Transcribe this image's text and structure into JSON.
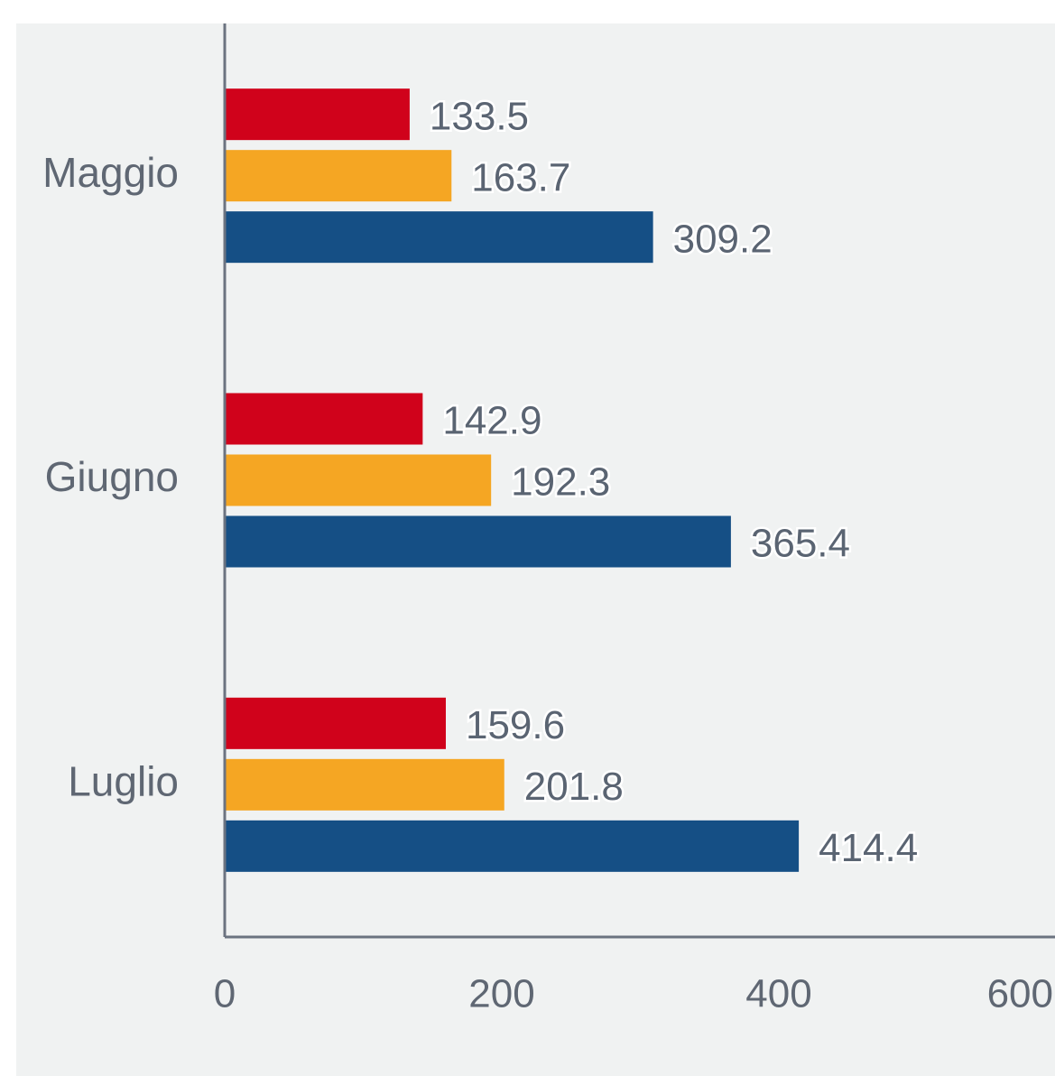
{
  "chart_data": {
    "type": "bar",
    "orientation": "horizontal",
    "categories": [
      "Maggio",
      "Giugno",
      "Luglio"
    ],
    "series": [
      {
        "color": "#d0021b",
        "values": [
          133.5,
          142.9,
          159.6
        ]
      },
      {
        "color": "#f5a623",
        "values": [
          163.7,
          192.3,
          201.8
        ]
      },
      {
        "color": "#154f85",
        "values": [
          309.2,
          365.4,
          414.4
        ]
      }
    ],
    "xlim": [
      0,
      600
    ],
    "xticks": [
      0,
      200,
      400,
      600
    ],
    "grid": false
  }
}
